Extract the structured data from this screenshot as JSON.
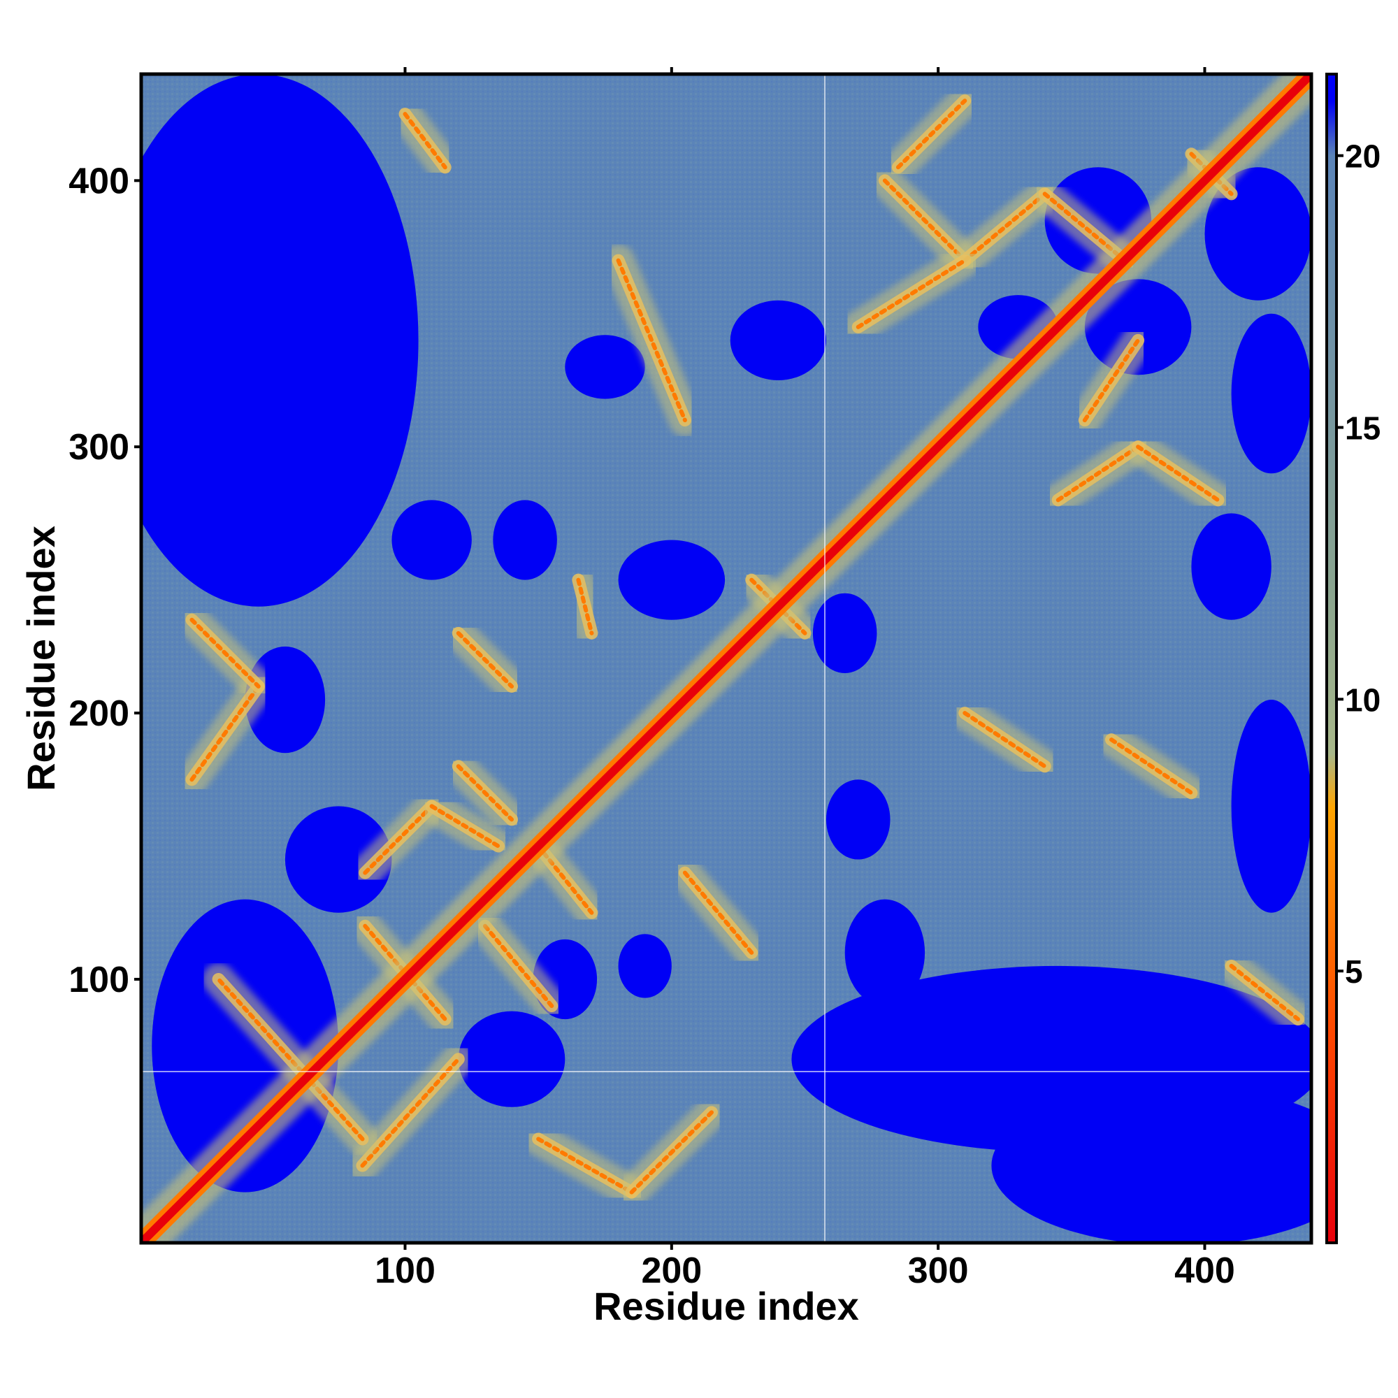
{
  "chart_data": {
    "type": "heatmap",
    "title": "",
    "xlabel": "Residue index",
    "ylabel": "Residue index",
    "xlim": [
      1,
      440
    ],
    "ylim": [
      1,
      440
    ],
    "x_ticks": [
      100,
      200,
      300,
      400
    ],
    "y_ticks": [
      100,
      200,
      300,
      400
    ],
    "colorbar": {
      "range": [
        0,
        21.5
      ],
      "ticks": [
        5,
        10,
        15,
        20
      ],
      "stops": [
        {
          "value": 0,
          "color": "#e8000b"
        },
        {
          "value": 4,
          "color": "#ff4a00"
        },
        {
          "value": 8,
          "color": "#ffa500"
        },
        {
          "value": 9,
          "color": "#a8b88a"
        },
        {
          "value": 12,
          "color": "#8aa58f"
        },
        {
          "value": 20,
          "color": "#5b84b8"
        },
        {
          "value": 21,
          "color": "#0000f5"
        }
      ]
    },
    "colors": {
      "far": "#0000f5",
      "mid": "#5b84b8",
      "near": "#e8000b",
      "contact": "#ff7a00",
      "halo": "#c8c27a"
    },
    "diagonal": {
      "from": 1,
      "to": 440
    },
    "contact_bands": [
      {
        "a": [
          84,
          30
        ],
        "b": [
          120,
          70
        ]
      },
      {
        "a": [
          84,
          40
        ],
        "b": [
          30,
          100
        ]
      },
      {
        "a": [
          20,
          175
        ],
        "b": [
          45,
          210
        ]
      },
      {
        "a": [
          20,
          235
        ],
        "b": [
          45,
          210
        ]
      },
      {
        "a": [
          85,
          140
        ],
        "b": [
          110,
          165
        ]
      },
      {
        "a": [
          110,
          165
        ],
        "b": [
          135,
          150
        ]
      },
      {
        "a": [
          85,
          120
        ],
        "b": [
          115,
          85
        ]
      },
      {
        "a": [
          130,
          120
        ],
        "b": [
          155,
          90
        ]
      },
      {
        "a": [
          150,
          150
        ],
        "b": [
          170,
          125
        ]
      },
      {
        "a": [
          120,
          230
        ],
        "b": [
          140,
          210
        ]
      },
      {
        "a": [
          205,
          140
        ],
        "b": [
          230,
          110
        ]
      },
      {
        "a": [
          150,
          40
        ],
        "b": [
          185,
          20
        ]
      },
      {
        "a": [
          185,
          20
        ],
        "b": [
          215,
          50
        ]
      },
      {
        "a": [
          100,
          425
        ],
        "b": [
          115,
          405
        ]
      },
      {
        "a": [
          180,
          370
        ],
        "b": [
          205,
          310
        ]
      },
      {
        "a": [
          165,
          250
        ],
        "b": [
          170,
          230
        ]
      },
      {
        "a": [
          285,
          405
        ],
        "b": [
          310,
          430
        ]
      },
      {
        "a": [
          280,
          400
        ],
        "b": [
          310,
          370
        ]
      },
      {
        "a": [
          310,
          370
        ],
        "b": [
          340,
          395
        ]
      },
      {
        "a": [
          340,
          395
        ],
        "b": [
          370,
          370
        ]
      },
      {
        "a": [
          270,
          345
        ],
        "b": [
          310,
          370
        ]
      },
      {
        "a": [
          345,
          280
        ],
        "b": [
          375,
          300
        ]
      },
      {
        "a": [
          375,
          300
        ],
        "b": [
          405,
          280
        ]
      },
      {
        "a": [
          355,
          310
        ],
        "b": [
          375,
          340
        ]
      },
      {
        "a": [
          310,
          200
        ],
        "b": [
          340,
          180
        ]
      },
      {
        "a": [
          365,
          190
        ],
        "b": [
          395,
          170
        ]
      },
      {
        "a": [
          410,
          105
        ],
        "b": [
          435,
          85
        ]
      },
      {
        "a": [
          395,
          410
        ],
        "b": [
          410,
          395
        ]
      },
      {
        "a": [
          120,
          180
        ],
        "b": [
          140,
          160
        ]
      },
      {
        "a": [
          230,
          250
        ],
        "b": [
          250,
          230
        ]
      }
    ],
    "far_blobs": [
      {
        "x": 45,
        "y": 340,
        "rx": 60,
        "ry": 100
      },
      {
        "x": 40,
        "y": 75,
        "rx": 35,
        "ry": 55
      },
      {
        "x": 75,
        "y": 145,
        "rx": 20,
        "ry": 20
      },
      {
        "x": 55,
        "y": 205,
        "rx": 15,
        "ry": 20
      },
      {
        "x": 140,
        "y": 70,
        "rx": 20,
        "ry": 18
      },
      {
        "x": 345,
        "y": 70,
        "rx": 100,
        "ry": 35
      },
      {
        "x": 390,
        "y": 30,
        "rx": 70,
        "ry": 30
      },
      {
        "x": 360,
        "y": 385,
        "rx": 20,
        "ry": 20
      },
      {
        "x": 375,
        "y": 345,
        "rx": 20,
        "ry": 18
      },
      {
        "x": 410,
        "y": 255,
        "rx": 15,
        "ry": 20
      },
      {
        "x": 280,
        "y": 110,
        "rx": 15,
        "ry": 20
      },
      {
        "x": 270,
        "y": 160,
        "rx": 12,
        "ry": 15
      },
      {
        "x": 265,
        "y": 230,
        "rx": 12,
        "ry": 15
      },
      {
        "x": 330,
        "y": 345,
        "rx": 15,
        "ry": 12
      },
      {
        "x": 200,
        "y": 250,
        "rx": 20,
        "ry": 15
      },
      {
        "x": 175,
        "y": 330,
        "rx": 15,
        "ry": 12
      },
      {
        "x": 240,
        "y": 340,
        "rx": 18,
        "ry": 15
      },
      {
        "x": 110,
        "y": 265,
        "rx": 15,
        "ry": 15
      },
      {
        "x": 145,
        "y": 265,
        "rx": 12,
        "ry": 15
      },
      {
        "x": 420,
        "y": 380,
        "rx": 20,
        "ry": 25
      },
      {
        "x": 425,
        "y": 165,
        "rx": 15,
        "ry": 40
      },
      {
        "x": 160,
        "y": 100,
        "rx": 12,
        "ry": 15
      },
      {
        "x": 190,
        "y": 105,
        "rx": 10,
        "ry": 12
      },
      {
        "x": 425,
        "y": 320,
        "rx": 15,
        "ry": 30
      }
    ],
    "grid": false,
    "legend": "none"
  }
}
